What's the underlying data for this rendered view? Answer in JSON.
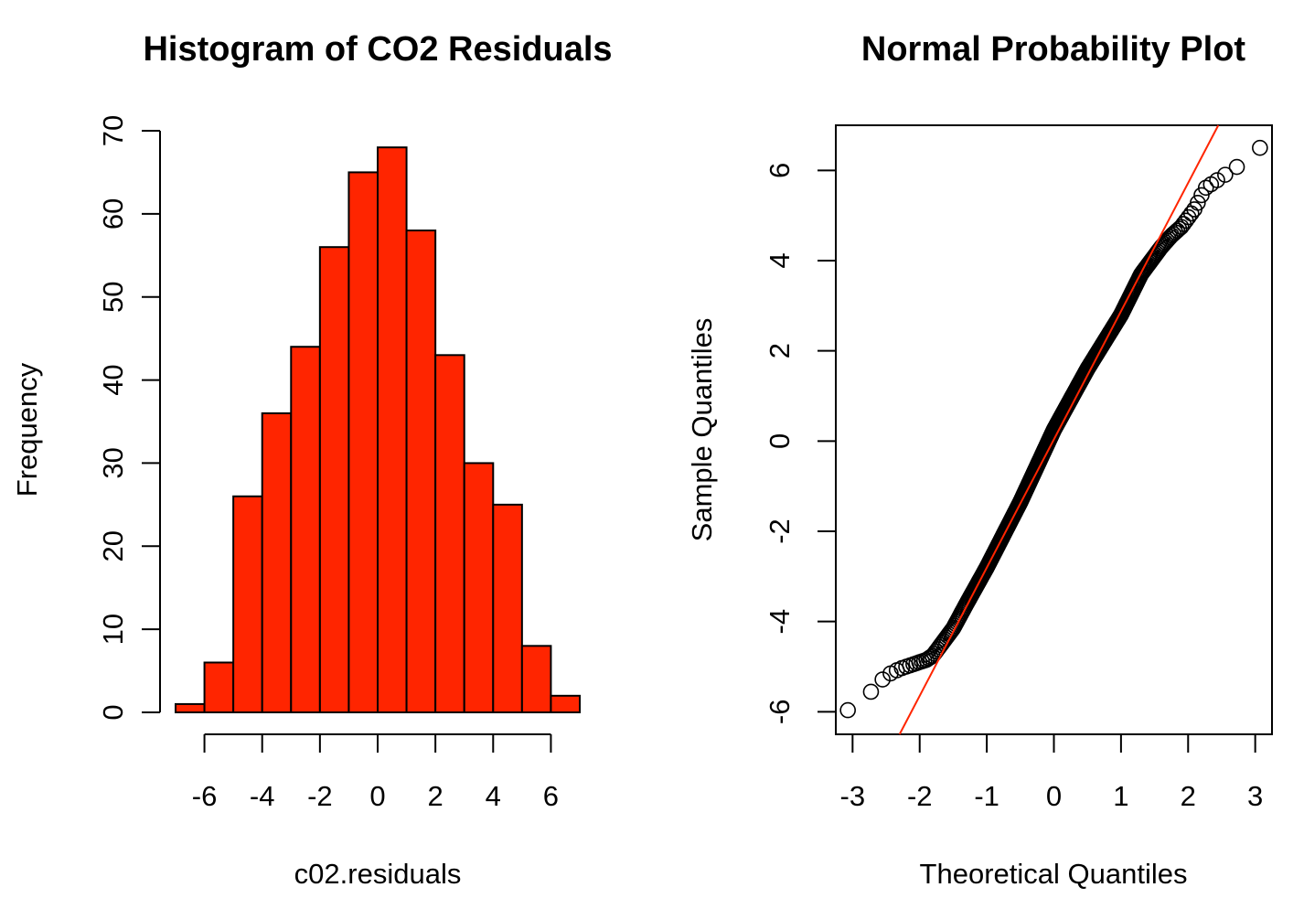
{
  "chart_data": [
    {
      "type": "bar",
      "title": "Histogram of CO2 Residuals",
      "xlabel": "c02.residuals",
      "ylabel": "Frequency",
      "bin_edges": [
        -7,
        -6,
        -5,
        -4,
        -3,
        -2,
        -1,
        0,
        1,
        2,
        3,
        4,
        5,
        6,
        7
      ],
      "values": [
        1,
        6,
        26,
        36,
        44,
        56,
        65,
        68,
        58,
        43,
        30,
        25,
        8,
        2
      ],
      "xlim": [
        -7,
        7
      ],
      "ylim": [
        0,
        70
      ],
      "xticks": [
        -6,
        -4,
        -2,
        0,
        2,
        4,
        6
      ],
      "xtick_labels": [
        "-6",
        "-4",
        "-2",
        "0",
        "2",
        "4",
        "6"
      ],
      "yticks": [
        0,
        10,
        20,
        30,
        40,
        50,
        60,
        70
      ],
      "ytick_labels": [
        "0",
        "10",
        "20",
        "30",
        "40",
        "50",
        "60",
        "70"
      ],
      "bar_color": "#ff2500",
      "edge_color": "#000000",
      "grid": false
    },
    {
      "type": "scatter",
      "title": "Normal Probability Plot",
      "xlabel": "Theoretical Quantiles",
      "ylabel": "Sample Quantiles",
      "n_points": 468,
      "xlim": [
        -3.25,
        3.25
      ],
      "ylim": [
        -6.5,
        7.0
      ],
      "xticks": [
        -3,
        -2,
        -1,
        0,
        1,
        2,
        3
      ],
      "xtick_labels": [
        "-3",
        "-2",
        "-1",
        "0",
        "1",
        "2",
        "3"
      ],
      "yticks": [
        -6,
        -4,
        -2,
        0,
        2,
        4,
        6
      ],
      "ytick_labels": [
        "-6",
        "-4",
        "-2",
        "0",
        "2",
        "4",
        "6"
      ],
      "sample_quantile_curve": {
        "x": [
          -3.1,
          -2.72,
          -2.5,
          -2.3,
          -2.1,
          -1.9,
          -1.8,
          -1.7,
          -1.6,
          -1.5,
          -1.3,
          -1.0,
          -0.5,
          0.0,
          0.5,
          1.0,
          1.3,
          1.5,
          1.6,
          1.75,
          1.9,
          2.0,
          2.1,
          2.25,
          2.4,
          2.5,
          2.75,
          3.07
        ],
        "y": [
          -6.0,
          -5.55,
          -5.2,
          -5.05,
          -4.95,
          -4.85,
          -4.75,
          -4.55,
          -4.35,
          -4.15,
          -3.6,
          -2.8,
          -1.35,
          0.25,
          1.6,
          2.8,
          3.7,
          4.1,
          4.3,
          4.55,
          4.75,
          4.95,
          5.15,
          5.6,
          5.75,
          5.85,
          6.1,
          6.5
        ]
      },
      "reference_line": {
        "x": [
          -2.3,
          2.45
        ],
        "y": [
          -6.5,
          7.0
        ]
      },
      "point_color": "#000000",
      "line_color": "#ff2500",
      "grid": false
    }
  ]
}
